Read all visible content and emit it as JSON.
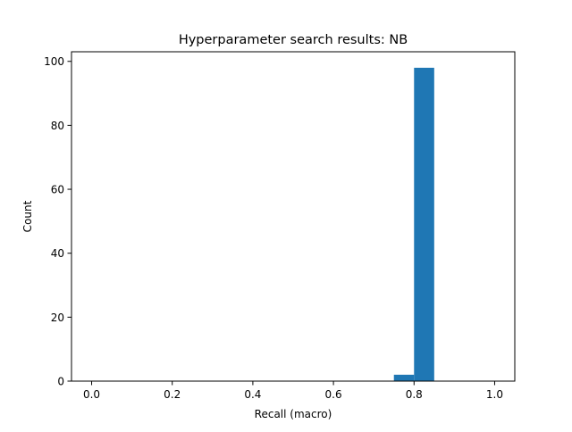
{
  "chart_data": {
    "type": "bar",
    "title": "Hyperparameter search results: NB",
    "xlabel": "Recall (macro)",
    "ylabel": "Count",
    "xlim": [
      -0.05,
      1.05
    ],
    "ylim": [
      0,
      103
    ],
    "xticks": [
      "0.0",
      "0.2",
      "0.4",
      "0.6",
      "0.8",
      "1.0"
    ],
    "yticks": [
      "0",
      "20",
      "40",
      "60",
      "80",
      "100"
    ],
    "grid": false,
    "bar_color": "#1f77b4",
    "bins": [
      {
        "x_start": 0.75,
        "x_end": 0.8,
        "count": 2
      },
      {
        "x_start": 0.8,
        "x_end": 0.85,
        "count": 98
      }
    ]
  }
}
